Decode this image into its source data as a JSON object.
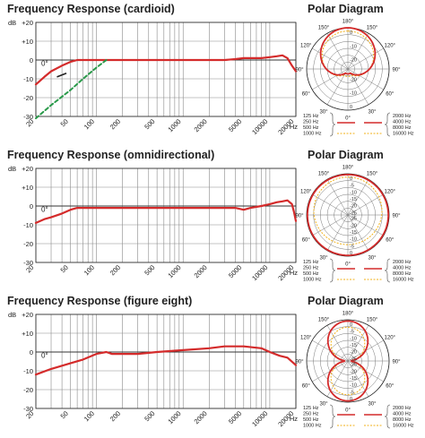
{
  "chart_data": [
    {
      "type": "line",
      "title": "Frequency Response (cardioid)",
      "ylabel": "dB",
      "xlabel": "Hz",
      "ylim": [
        -30,
        20
      ],
      "xlim": [
        20,
        20000
      ],
      "x_scale": "log",
      "y_ticks": [
        "+20",
        "+10",
        "0",
        "-10",
        "-20",
        "-30"
      ],
      "x_ticks": [
        "20",
        "50",
        "100",
        "200",
        "500",
        "1000",
        "2000",
        "5000",
        "10000",
        "20000"
      ],
      "annotations": [
        "0°"
      ],
      "grid": true,
      "series": [
        {
          "color": "#d42b2b",
          "dash": false,
          "x": [
            20,
            25,
            30,
            40,
            50,
            60,
            70,
            90,
            120,
            200,
            500,
            1000,
            2000,
            3000,
            4000,
            5000,
            6000,
            8000,
            10000,
            12000,
            14000,
            16000,
            18000,
            20000
          ],
          "y": [
            -13,
            -9,
            -6,
            -3,
            -1,
            0,
            0,
            0,
            0,
            0,
            0,
            0,
            0,
            0,
            0.5,
            1,
            1,
            1,
            1.5,
            2,
            2.5,
            1,
            -3,
            -6
          ]
        },
        {
          "color": "#2a9a4a",
          "dash": true,
          "x": [
            20,
            30,
            50,
            70,
            100,
            130
          ],
          "y": [
            -31,
            -24,
            -16,
            -10,
            -4,
            0
          ]
        }
      ]
    },
    {
      "type": "line",
      "title": "Frequency Response (omnidirectional)",
      "ylabel": "dB",
      "xlabel": "Hz",
      "ylim": [
        -30,
        20
      ],
      "xlim": [
        20,
        20000
      ],
      "x_scale": "log",
      "y_ticks": [
        "+20",
        "+10",
        "0",
        "-10",
        "-20",
        "-30"
      ],
      "x_ticks": [
        "20",
        "50",
        "100",
        "200",
        "500",
        "1000",
        "2000",
        "5000",
        "10000",
        "20000"
      ],
      "annotations": [
        "0°"
      ],
      "grid": true,
      "series": [
        {
          "color": "#d42b2b",
          "dash": false,
          "x": [
            20,
            25,
            30,
            40,
            50,
            60,
            80,
            100,
            200,
            500,
            1000,
            2000,
            3000,
            4000,
            5000,
            6000,
            8000,
            10000,
            12000,
            14000,
            16000,
            18000,
            19000,
            20000
          ],
          "y": [
            -9,
            -7,
            -6,
            -4,
            -2,
            -1,
            -1,
            -1,
            -1,
            -1,
            -1,
            -1,
            -1,
            -1,
            -2,
            -1,
            0,
            1,
            2,
            2.5,
            3,
            1,
            -3,
            -8
          ]
        }
      ]
    },
    {
      "type": "line",
      "title": "Frequency Response (figure eight)",
      "ylabel": "dB",
      "xlabel": "Hz",
      "ylim": [
        -30,
        20
      ],
      "xlim": [
        20,
        20000
      ],
      "x_scale": "log",
      "y_ticks": [
        "+20",
        "+10",
        "0",
        "-10",
        "-20",
        "-30"
      ],
      "x_ticks": [
        "20",
        "50",
        "100",
        "200",
        "500",
        "1000",
        "2000",
        "5000",
        "10000",
        "20000"
      ],
      "annotations": [
        "0°"
      ],
      "grid": true,
      "series": [
        {
          "color": "#d42b2b",
          "dash": false,
          "x": [
            20,
            30,
            50,
            70,
            100,
            130,
            150,
            200,
            300,
            500,
            1000,
            2000,
            3000,
            5000,
            8000,
            10000,
            13000,
            16000,
            20000
          ],
          "y": [
            -12,
            -9,
            -6,
            -4,
            -1,
            0,
            -1,
            -1,
            -1,
            0,
            1,
            2,
            3,
            3,
            2,
            0,
            -2,
            -3,
            -7
          ]
        }
      ]
    }
  ],
  "polar": {
    "title": "Polar Diagram",
    "angle_labels": [
      "180°",
      "150°",
      "150°",
      "120°",
      "120°",
      "90°",
      "90°",
      "60°",
      "60°",
      "30°",
      "30°",
      "0°"
    ],
    "ring_labels": [
      "0",
      "-5",
      "-10",
      "-15",
      "-20",
      "-25"
    ],
    "ring_labels_short": [
      "0",
      "-10",
      "-20"
    ],
    "legend_left": [
      "125 Hz",
      "250 Hz",
      "500 Hz",
      "1000 Hz"
    ],
    "legend_right": [
      "2000 Hz",
      "4000 Hz",
      "8000 Hz",
      "16000 Hz"
    ],
    "colors": {
      "curve": "#d42b2b",
      "alt": "#f2b21a",
      "grid": "#555555"
    }
  }
}
